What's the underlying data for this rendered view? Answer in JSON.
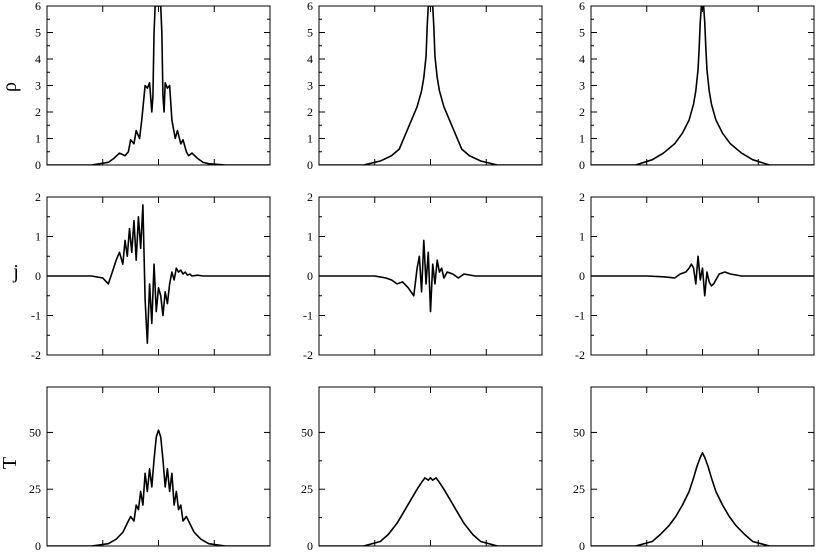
{
  "chart_data": {
    "type": "line",
    "layout": "3x3 grid of panels; rows share y-labels, columns share x-axis",
    "row_labels": [
      "ρ",
      "j",
      "T"
    ],
    "x_tick_labels_shown": false,
    "x_range": [
      -1,
      1
    ],
    "rows": [
      {
        "ylabel": "ρ",
        "ylim": [
          0,
          6
        ],
        "yticks": [
          0,
          1,
          2,
          3,
          4,
          5,
          6
        ],
        "panels": [
          {
            "x": [
              -0.6,
              -0.45,
              -0.4,
              -0.35,
              -0.3,
              -0.27,
              -0.25,
              -0.22,
              -0.2,
              -0.17,
              -0.15,
              -0.12,
              -0.1,
              -0.08,
              -0.06,
              -0.05,
              -0.04,
              -0.03,
              -0.02,
              0,
              0.02,
              0.03,
              0.04,
              0.05,
              0.06,
              0.08,
              0.1,
              0.12,
              0.15,
              0.17,
              0.2,
              0.22,
              0.25,
              0.27,
              0.3,
              0.35,
              0.4,
              0.45,
              0.6
            ],
            "y": [
              0,
              0.1,
              0.25,
              0.45,
              0.35,
              0.5,
              0.95,
              0.8,
              1.3,
              1.0,
              1.7,
              3.0,
              2.9,
              3.1,
              2.0,
              2.6,
              5.0,
              6,
              6,
              6,
              6,
              5.0,
              2.6,
              2.0,
              3.1,
              2.9,
              3.0,
              1.7,
              1.0,
              1.3,
              0.8,
              0.95,
              0.5,
              0.35,
              0.45,
              0.25,
              0.1,
              0.05,
              0
            ]
          },
          {
            "x": [
              -0.6,
              -0.45,
              -0.35,
              -0.28,
              -0.22,
              -0.17,
              -0.12,
              -0.08,
              -0.06,
              -0.04,
              -0.03,
              -0.02,
              -0.01,
              0,
              0.01,
              0.02,
              0.03,
              0.04,
              0.06,
              0.08,
              0.12,
              0.17,
              0.22,
              0.28,
              0.35,
              0.45,
              0.6
            ],
            "y": [
              0,
              0.15,
              0.35,
              0.6,
              1.2,
              1.7,
              2.2,
              2.8,
              3.3,
              4.1,
              5.2,
              6,
              6,
              6,
              6,
              6,
              5.2,
              4.1,
              3.3,
              2.8,
              2.2,
              1.7,
              1.2,
              0.6,
              0.35,
              0.15,
              0
            ]
          },
          {
            "x": [
              -0.6,
              -0.45,
              -0.35,
              -0.25,
              -0.18,
              -0.12,
              -0.08,
              -0.06,
              -0.04,
              -0.03,
              -0.02,
              -0.01,
              0,
              0.01,
              0.02,
              0.03,
              0.04,
              0.06,
              0.08,
              0.12,
              0.18,
              0.25,
              0.35,
              0.45,
              0.6
            ],
            "y": [
              0,
              0.2,
              0.45,
              0.8,
              1.2,
              1.7,
              2.3,
              2.8,
              3.6,
              4.4,
              5.4,
              6,
              6,
              6,
              5.4,
              4.4,
              3.6,
              2.8,
              2.3,
              1.7,
              1.2,
              0.8,
              0.45,
              0.2,
              0
            ]
          }
        ]
      },
      {
        "ylabel": "j",
        "ylim": [
          -2,
          2
        ],
        "yticks": [
          -2,
          -1,
          0,
          1,
          2
        ],
        "panels": [
          {
            "x": [
              -1,
              -0.6,
              -0.5,
              -0.45,
              -0.42,
              -0.38,
              -0.35,
              -0.32,
              -0.3,
              -0.28,
              -0.26,
              -0.24,
              -0.22,
              -0.2,
              -0.18,
              -0.16,
              -0.14,
              -0.12,
              -0.1,
              -0.08,
              -0.06,
              -0.04,
              -0.02,
              0,
              0.02,
              0.04,
              0.06,
              0.08,
              0.1,
              0.12,
              0.14,
              0.16,
              0.18,
              0.2,
              0.22,
              0.24,
              0.26,
              0.28,
              0.3,
              0.35,
              0.4,
              0.5,
              1
            ],
            "y": [
              0,
              0,
              -0.05,
              -0.2,
              0.05,
              0.4,
              0.6,
              0.3,
              0.9,
              0.5,
              1.2,
              0.6,
              1.4,
              0.4,
              1.5,
              0.7,
              1.8,
              -0.6,
              -1.7,
              -0.2,
              -1.2,
              0.3,
              -0.9,
              -0.3,
              -0.5,
              -1.0,
              -0.4,
              -0.7,
              -0.2,
              0.1,
              -0.1,
              0.2,
              0.1,
              0.15,
              0.05,
              0.1,
              0.02,
              0.05,
              0,
              0.02,
              0,
              0,
              0
            ]
          },
          {
            "x": [
              -1,
              -0.5,
              -0.4,
              -0.35,
              -0.3,
              -0.25,
              -0.2,
              -0.15,
              -0.12,
              -0.1,
              -0.08,
              -0.06,
              -0.04,
              -0.02,
              0,
              0.02,
              0.04,
              0.06,
              0.08,
              0.1,
              0.12,
              0.15,
              0.2,
              0.25,
              0.3,
              0.4,
              0.5,
              1
            ],
            "y": [
              0,
              0,
              -0.05,
              -0.1,
              -0.2,
              -0.15,
              -0.3,
              -0.5,
              0.2,
              0.5,
              -0.4,
              0.9,
              -0.2,
              0.6,
              -0.9,
              0.3,
              -0.2,
              0.4,
              0.1,
              0.2,
              -0.05,
              0.1,
              0.05,
              -0.05,
              0.05,
              0,
              0,
              0
            ]
          },
          {
            "x": [
              -1,
              -0.5,
              -0.35,
              -0.25,
              -0.2,
              -0.15,
              -0.12,
              -0.1,
              -0.08,
              -0.06,
              -0.04,
              -0.02,
              0,
              0.02,
              0.04,
              0.06,
              0.08,
              0.1,
              0.12,
              0.15,
              0.2,
              0.25,
              0.35,
              0.5,
              1
            ],
            "y": [
              0,
              0,
              -0.02,
              -0.05,
              0.05,
              0.1,
              0.2,
              0.3,
              0.2,
              -0.2,
              0.5,
              -0.1,
              0.2,
              -0.5,
              0.1,
              -0.15,
              -0.25,
              -0.2,
              -0.1,
              0.05,
              0.1,
              0.05,
              0,
              0,
              0
            ]
          }
        ]
      },
      {
        "ylabel": "T",
        "ylim": [
          0,
          70
        ],
        "yticks": [
          0,
          25,
          50
        ],
        "panels": [
          {
            "x": [
              -0.6,
              -0.45,
              -0.38,
              -0.32,
              -0.28,
              -0.25,
              -0.22,
              -0.2,
              -0.18,
              -0.16,
              -0.14,
              -0.12,
              -0.1,
              -0.08,
              -0.06,
              -0.04,
              -0.02,
              0,
              0.02,
              0.04,
              0.06,
              0.08,
              0.1,
              0.12,
              0.14,
              0.16,
              0.18,
              0.2,
              0.22,
              0.25,
              0.28,
              0.32,
              0.38,
              0.45,
              0.6
            ],
            "y": [
              0,
              1,
              3,
              6,
              10,
              13,
              11,
              18,
              16,
              24,
              18,
              32,
              24,
              34,
              26,
              38,
              48,
              51,
              48,
              38,
              26,
              34,
              24,
              32,
              18,
              24,
              16,
              18,
              11,
              13,
              10,
              6,
              3,
              1,
              0
            ]
          },
          {
            "x": [
              -0.6,
              -0.45,
              -0.38,
              -0.3,
              -0.24,
              -0.18,
              -0.12,
              -0.08,
              -0.05,
              -0.02,
              0,
              0.02,
              0.05,
              0.08,
              0.12,
              0.18,
              0.24,
              0.3,
              0.38,
              0.45,
              0.6
            ],
            "y": [
              0,
              2,
              5,
              10,
              15,
              20,
              25,
              28,
              30,
              29,
              30,
              29,
              30,
              28,
              25,
              20,
              15,
              10,
              5,
              2,
              0
            ]
          },
          {
            "x": [
              -0.6,
              -0.45,
              -0.38,
              -0.3,
              -0.24,
              -0.18,
              -0.12,
              -0.08,
              -0.05,
              -0.02,
              0,
              0.02,
              0.05,
              0.08,
              0.12,
              0.18,
              0.24,
              0.3,
              0.38,
              0.45,
              0.6
            ],
            "y": [
              0,
              2,
              5,
              9,
              13,
              18,
              24,
              30,
              35,
              39,
              41,
              39,
              35,
              30,
              24,
              18,
              13,
              9,
              5,
              2,
              0
            ]
          }
        ]
      }
    ]
  }
}
